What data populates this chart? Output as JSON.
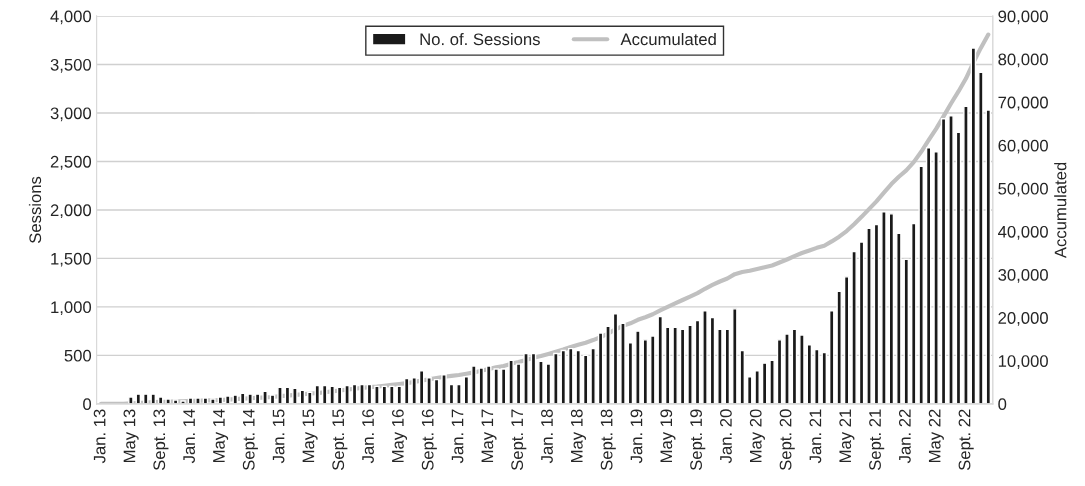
{
  "chart_data": {
    "type": "bar",
    "ylabel": "Sessions",
    "y2label": "Accumulated",
    "categories": [
      "Jan. 13",
      null,
      null,
      null,
      "May 13",
      null,
      null,
      null,
      "Sept. 13",
      null,
      null,
      null,
      "Jan. 14",
      null,
      null,
      null,
      "May 14",
      null,
      null,
      null,
      "Sept. 14",
      null,
      null,
      null,
      "Jan. 15",
      null,
      null,
      null,
      "May 15",
      null,
      null,
      null,
      "Sept. 15",
      null,
      null,
      null,
      "Jan. 16",
      null,
      null,
      null,
      "May 16",
      null,
      null,
      null,
      "Sept. 16",
      null,
      null,
      null,
      "Jan. 17",
      null,
      null,
      null,
      "May 17",
      null,
      null,
      null,
      "Sept. 17",
      null,
      null,
      null,
      "Jan. 18",
      null,
      null,
      null,
      "May 18",
      null,
      null,
      null,
      "Sept. 18",
      null,
      null,
      null,
      "Jan. 19",
      null,
      null,
      null,
      "May 19",
      null,
      null,
      null,
      "Sept. 19",
      null,
      null,
      null,
      "Jan. 20",
      null,
      null,
      null,
      "May 20",
      null,
      null,
      null,
      "Sept. 20",
      null,
      null,
      null,
      "Jan. 21",
      null,
      null,
      null,
      "May 21",
      null,
      null,
      null,
      "Sept. 21",
      null,
      null,
      null,
      "Jan. 22",
      null,
      null,
      null,
      "May 22",
      null,
      null,
      null,
      "Sept. 22",
      null,
      null,
      null
    ],
    "series": [
      {
        "name": "No. of. Sessions",
        "color": "#1a1a1a",
        "values": [
          null,
          null,
          null,
          null,
          70,
          100,
          100,
          100,
          70,
          50,
          40,
          30,
          60,
          60,
          60,
          50,
          70,
          80,
          90,
          110,
          100,
          100,
          130,
          90,
          170,
          170,
          160,
          140,
          120,
          190,
          190,
          180,
          170,
          190,
          200,
          200,
          200,
          180,
          180,
          180,
          180,
          260,
          270,
          340,
          270,
          250,
          300,
          200,
          200,
          280,
          390,
          370,
          390,
          360,
          360,
          450,
          410,
          520,
          520,
          440,
          410,
          520,
          550,
          570,
          550,
          500,
          570,
          730,
          800,
          930,
          830,
          630,
          750,
          660,
          700,
          900,
          790,
          790,
          770,
          810,
          860,
          960,
          890,
          770,
          770,
          980,
          550,
          280,
          340,
          420,
          450,
          660,
          720,
          770,
          710,
          610,
          560,
          530,
          960,
          1160,
          1310,
          1570,
          1670,
          1810,
          1850,
          1980,
          1960,
          1760,
          1490,
          1860,
          2450,
          2640,
          2600,
          2940,
          2970,
          2800,
          3070,
          3670,
          3420,
          3030
        ]
      },
      {
        "name": "Accumulated",
        "type": "line",
        "axis": "y2",
        "color": "#c0c0c0",
        "values": [
          0,
          0,
          0,
          0,
          100,
          200,
          300,
          400,
          500,
          500,
          600,
          600,
          700,
          700,
          800,
          800,
          900,
          1000,
          1100,
          1200,
          1300,
          1400,
          1500,
          1600,
          1800,
          1900,
          2100,
          2200,
          2400,
          2500,
          2700,
          2900,
          3100,
          3300,
          3500,
          3700,
          3900,
          4000,
          4200,
          4400,
          4600,
          4800,
          5100,
          5400,
          5700,
          6000,
          6300,
          6500,
          6700,
          7000,
          7300,
          7700,
          8100,
          8500,
          8800,
          9300,
          9700,
          10200,
          10700,
          11100,
          11600,
          12100,
          12600,
          13200,
          13700,
          14200,
          14800,
          15500,
          16300,
          17300,
          18100,
          18700,
          19500,
          20100,
          20800,
          21700,
          22500,
          23300,
          24100,
          24900,
          25700,
          26700,
          27600,
          28400,
          29100,
          30100,
          30600,
          30900,
          31300,
          31700,
          32100,
          32800,
          33500,
          34300,
          35000,
          35600,
          36200,
          36700,
          37700,
          38800,
          40100,
          41700,
          43400,
          45200,
          47000,
          49000,
          51000,
          52700,
          54200,
          56100,
          58500,
          61200,
          63800,
          66700,
          69700,
          72500,
          75500,
          79200,
          82600,
          85700
        ]
      }
    ],
    "ylim": [
      0,
      4000
    ],
    "yticks": [
      0,
      500,
      {
        "value": 1000,
        "label": "1,000"
      },
      {
        "value": 1500,
        "label": "1,500"
      },
      {
        "value": 2000,
        "label": "2,000"
      },
      {
        "value": 2500,
        "label": "2,500"
      },
      {
        "value": 3000,
        "label": "3,000"
      },
      {
        "value": 3500,
        "label": "3,500"
      },
      {
        "value": 4000,
        "label": "4,000"
      }
    ],
    "y2lim": [
      0,
      90000
    ],
    "y2ticks": [
      0,
      {
        "value": 10000,
        "label": "10,000"
      },
      {
        "value": 20000,
        "label": "20,000"
      },
      {
        "value": 30000,
        "label": "30,000"
      },
      {
        "value": 40000,
        "label": "40,000"
      },
      {
        "value": 50000,
        "label": "50,000"
      },
      {
        "value": 60000,
        "label": "60,000"
      },
      {
        "value": 70000,
        "label": "70,000"
      },
      {
        "value": 80000,
        "label": "80,000"
      },
      {
        "value": 90000,
        "label": "90,000"
      }
    ],
    "grid": "y",
    "legend": "top"
  }
}
